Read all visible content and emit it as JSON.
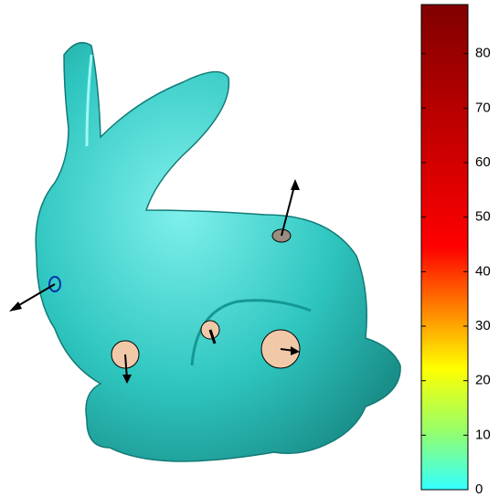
{
  "chart_data": {
    "type": "surface",
    "colorbar": {
      "ylim": [
        0,
        89
      ],
      "yticks": [
        0,
        10,
        20,
        30,
        40,
        50,
        60,
        70,
        80
      ],
      "colormap": [
        "#33ffff",
        "#99ff66",
        "#ffff00",
        "#ff8000",
        "#ff0000",
        "#e00000",
        "#c00000",
        "#a00000",
        "#800000"
      ]
    }
  }
}
